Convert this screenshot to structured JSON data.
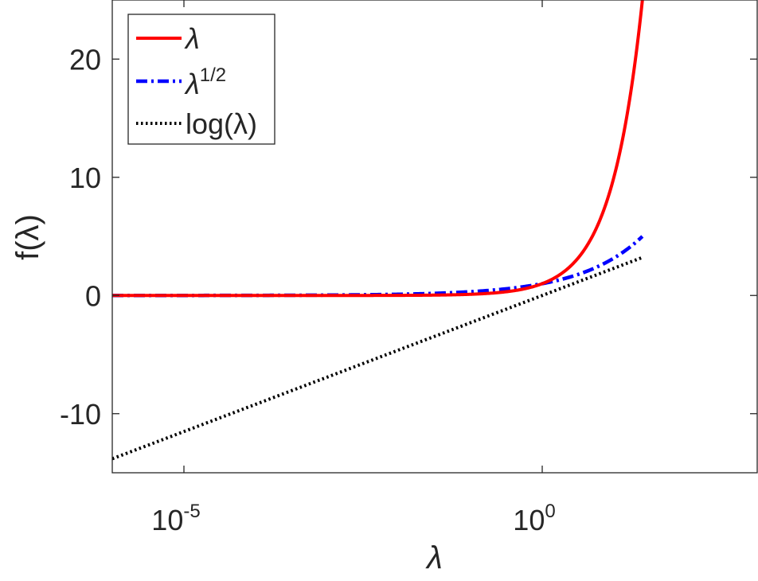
{
  "chart_data": {
    "type": "line",
    "xscale": "log",
    "xlim": [
      1e-06,
      1000
    ],
    "ylim": [
      -15,
      25
    ],
    "xticks": [
      {
        "value": 1e-05,
        "base": "10",
        "exponent": "-5"
      },
      {
        "value": 1,
        "base": "10",
        "exponent": "0"
      }
    ],
    "yticks": [
      {
        "value": -10,
        "label": "-10"
      },
      {
        "value": 0,
        "label": "0"
      },
      {
        "value": 10,
        "label": "10"
      },
      {
        "value": 20,
        "label": "20"
      }
    ],
    "xlabel": "λ",
    "ylabel": "f(λ)",
    "grid": false,
    "box": true,
    "legend": {
      "placement": "top-left",
      "entries": [
        {
          "base": "λ",
          "sup": "",
          "suffix": ""
        },
        {
          "base": "λ",
          "sup": "1/2",
          "suffix": ""
        },
        {
          "base": "log(λ",
          "sup": "",
          "suffix": ")"
        }
      ]
    },
    "x_range": [
      1e-06,
      25
    ],
    "series": [
      {
        "name": "λ",
        "function": "lambda",
        "color": "#ff0000",
        "dash": "solid",
        "x": [
          1e-06,
          1e-05,
          0.0001,
          0.001,
          0.01,
          0.1,
          0.5,
          1,
          2,
          4,
          6,
          8,
          10,
          12,
          15,
          18,
          21,
          24.5
        ],
        "y": [
          0,
          1e-05,
          0.0001,
          0.001,
          0.01,
          0.1,
          0.5,
          1,
          2,
          4,
          6,
          8,
          10,
          12,
          15,
          18,
          21,
          24.5
        ]
      },
      {
        "name": "λ1/2",
        "function": "sqrt",
        "color": "#0000ff",
        "dash": "dashdot",
        "x": [
          1e-06,
          1e-05,
          0.0001,
          0.001,
          0.01,
          0.1,
          0.5,
          1,
          2,
          5,
          10,
          15,
          20,
          25
        ],
        "y": [
          0.001,
          0.0032,
          0.01,
          0.032,
          0.1,
          0.32,
          0.71,
          1,
          1.41,
          2.24,
          3.16,
          3.87,
          4.47,
          5
        ]
      },
      {
        "name": "log(λ)",
        "function": "log",
        "color": "#000000",
        "dash": "dotted",
        "x": [
          1e-06,
          1e-05,
          0.0001,
          0.001,
          0.01,
          0.1,
          1,
          10,
          25
        ],
        "y": [
          -13.8,
          -11.5,
          -9.2,
          -6.9,
          -4.6,
          -2.3,
          0,
          2.3,
          3.2
        ]
      }
    ]
  }
}
